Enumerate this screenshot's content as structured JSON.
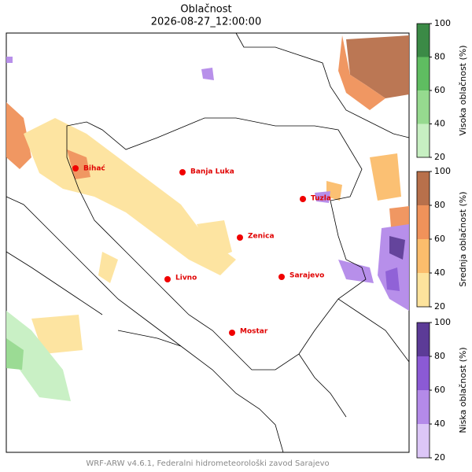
{
  "header": {
    "title": "Oblačnost",
    "subtitle": "2026-08-27_12:00:00"
  },
  "cities": [
    "Bihać",
    "Banja Luka",
    "Tuzla",
    "Zenica",
    "Livno",
    "Sarajevo",
    "Mostar"
  ],
  "colorbars": [
    {
      "label": "Visoka oblačnost (%)",
      "lim": [
        20,
        100
      ],
      "ticks": [
        20,
        40,
        60,
        80,
        100
      ],
      "colors": [
        "#c7f0c2",
        "#96da8f",
        "#5fbd61",
        "#3b8a46"
      ]
    },
    {
      "label": "Srednja oblačnost (%)",
      "lim": [
        20,
        100
      ],
      "ticks": [
        20,
        40,
        60,
        80,
        100
      ],
      "colors": [
        "#fde39c",
        "#fbbd6c",
        "#f0925a",
        "#b8704b"
      ]
    },
    {
      "label": "Niska oblačnost (%)",
      "lim": [
        20,
        100
      ],
      "ticks": [
        20,
        40,
        60,
        80,
        100
      ],
      "colors": [
        "#dcc6f7",
        "#b48ae9",
        "#8b5ad5",
        "#5c3b97"
      ]
    }
  ],
  "footer": "WRF-ARW v4.6.1, Federalni hidrometeorološki zavod Sarajevo"
}
